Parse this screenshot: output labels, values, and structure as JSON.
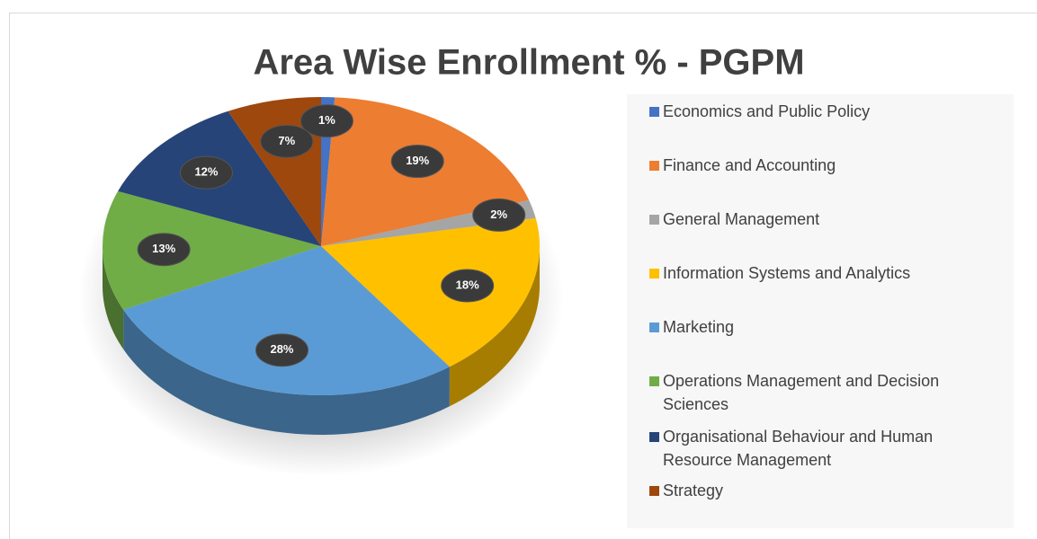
{
  "chart_data": {
    "type": "pie",
    "title": "Area Wise Enrollment % - PGPM",
    "categories": [
      "Economics and Public Policy",
      "Finance and Accounting",
      "General Management",
      "Information Systems and Analytics",
      "Marketing",
      "Operations Management and Decision Sciences",
      "Organisational Behaviour and Human Resource Management",
      "Strategy"
    ],
    "values": [
      1,
      19,
      2,
      18,
      28,
      13,
      12,
      7
    ],
    "value_labels": [
      "1%",
      "19%",
      "2%",
      "18%",
      "28%",
      "13%",
      "12%",
      "7%"
    ],
    "colors": [
      "#4472c4",
      "#ed7d31",
      "#a5a5a5",
      "#ffc000",
      "#5b9bd5",
      "#70ad47",
      "#264478",
      "#9e480e"
    ],
    "legend": "right"
  }
}
